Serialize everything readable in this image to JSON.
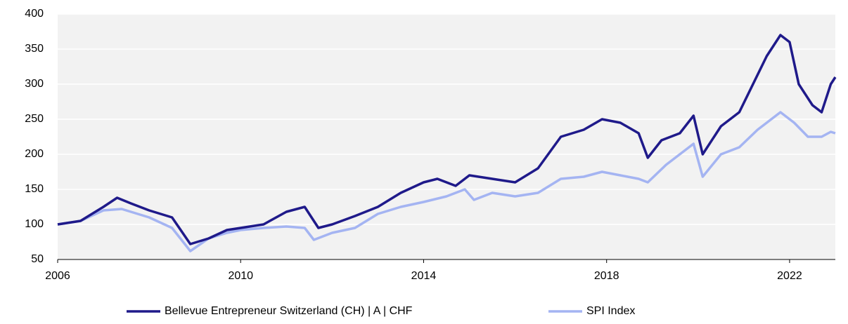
{
  "chart_data": {
    "type": "line",
    "series": [
      {
        "name": "Bellevue Entrepreneur Switzerland (CH) | A | CHF",
        "color": "#1f1a8a",
        "x": [
          2006,
          2006.5,
          2007,
          2007.3,
          2007.6,
          2008,
          2008.5,
          2008.9,
          2009.3,
          2009.7,
          2010,
          2010.5,
          2011,
          2011.4,
          2011.7,
          2012,
          2012.5,
          2013,
          2013.5,
          2014,
          2014.3,
          2014.7,
          2015,
          2015.5,
          2016,
          2016.5,
          2017,
          2017.5,
          2017.9,
          2018.3,
          2018.7,
          2018.9,
          2019.2,
          2019.6,
          2019.9,
          2020.1,
          2020.5,
          2020.9,
          2021.2,
          2021.5,
          2021.8,
          2022,
          2022.2,
          2022.5,
          2022.7,
          2022.9,
          2023
        ],
        "values": [
          100,
          105,
          125,
          138,
          130,
          120,
          110,
          72,
          80,
          92,
          95,
          100,
          118,
          125,
          95,
          100,
          112,
          125,
          145,
          160,
          165,
          155,
          170,
          165,
          160,
          180,
          225,
          235,
          250,
          245,
          230,
          195,
          220,
          230,
          255,
          200,
          240,
          260,
          300,
          340,
          370,
          360,
          300,
          270,
          260,
          300,
          310
        ]
      },
      {
        "name": "SPI Index",
        "color": "#a4b4f2",
        "x": [
          2006,
          2006.5,
          2007,
          2007.4,
          2008,
          2008.5,
          2008.9,
          2009.3,
          2009.7,
          2010,
          2010.5,
          2011,
          2011.4,
          2011.6,
          2012,
          2012.5,
          2013,
          2013.5,
          2014,
          2014.5,
          2014.9,
          2015.1,
          2015.5,
          2016,
          2016.5,
          2017,
          2017.5,
          2017.9,
          2018.3,
          2018.7,
          2018.9,
          2019.3,
          2019.9,
          2020.1,
          2020.5,
          2020.9,
          2021.3,
          2021.8,
          2022.1,
          2022.4,
          2022.7,
          2022.9,
          2023
        ],
        "values": [
          100,
          105,
          120,
          122,
          110,
          95,
          62,
          80,
          88,
          92,
          95,
          97,
          95,
          78,
          88,
          95,
          115,
          125,
          132,
          140,
          150,
          135,
          145,
          140,
          145,
          165,
          168,
          175,
          170,
          165,
          160,
          185,
          215,
          168,
          200,
          210,
          235,
          260,
          245,
          225,
          225,
          232,
          230
        ]
      }
    ],
    "xlim": [
      2006,
      2023
    ],
    "xticks": [
      2006,
      2010,
      2014,
      2018,
      2022
    ],
    "ylim": [
      50,
      400
    ],
    "yticks": [
      50,
      100,
      150,
      200,
      250,
      300,
      350,
      400
    ],
    "grid": true,
    "legend": "bottom"
  }
}
